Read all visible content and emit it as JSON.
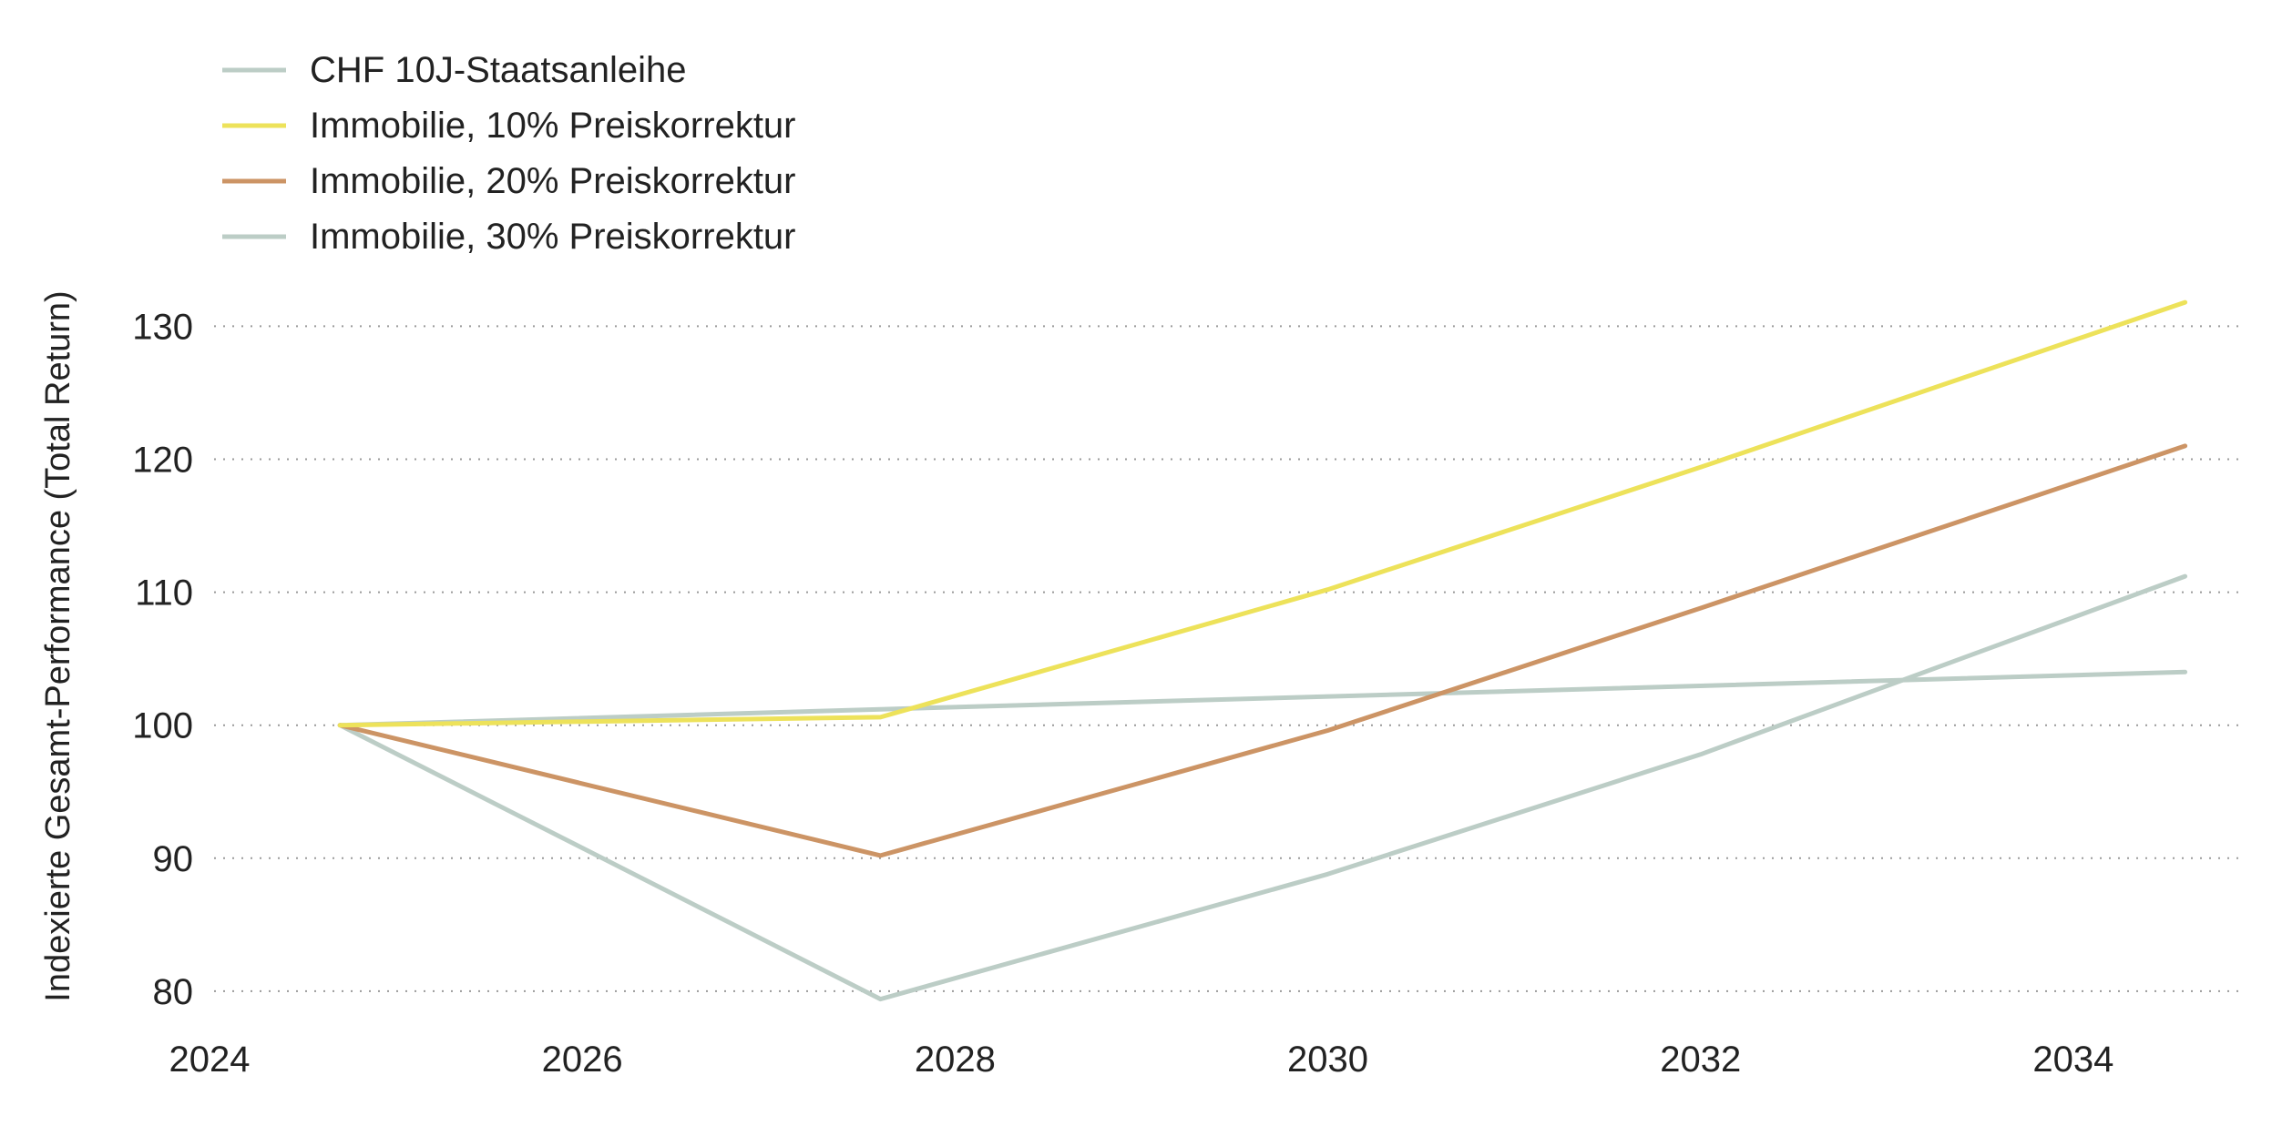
{
  "chart_data": {
    "type": "line",
    "title": "",
    "xlabel": "",
    "ylabel": "Indexierte Gesamt-Performance (Total Return)",
    "xlim": [
      2024,
      2034.9
    ],
    "ylim": [
      76.5,
      134
    ],
    "xticks": [
      2024,
      2026,
      2028,
      2030,
      2032,
      2034
    ],
    "yticks": [
      80,
      90,
      100,
      110,
      120,
      130
    ],
    "grid": "horizontal-dotted",
    "legend": "top-left",
    "series": [
      {
        "name": "CHF 10J-Staatsanleihe",
        "color": "#bccdc6",
        "x": [
          2024.7,
          2027.6,
          2034.6
        ],
        "y": [
          100,
          101.2,
          104
        ]
      },
      {
        "name": "Immobilie, 10% Preiskorrektur",
        "color": "#ede25a",
        "x": [
          2024.7,
          2027.6,
          2030.0,
          2032.0,
          2034.6
        ],
        "y": [
          100,
          100.6,
          110.2,
          119.4,
          131.8
        ]
      },
      {
        "name": "Immobilie, 20% Preiskorrektur",
        "color": "#cc9465",
        "x": [
          2024.7,
          2027.6,
          2030.0,
          2032.0,
          2034.6
        ],
        "y": [
          100,
          90.2,
          99.6,
          108.8,
          121
        ]
      },
      {
        "name": "Immobilie, 30% Preiskorrektur",
        "color": "#bccdc6",
        "x": [
          2024.7,
          2027.6,
          2030.0,
          2032.0,
          2034.6
        ],
        "y": [
          100,
          79.4,
          88.8,
          97.8,
          111.2
        ]
      }
    ]
  }
}
